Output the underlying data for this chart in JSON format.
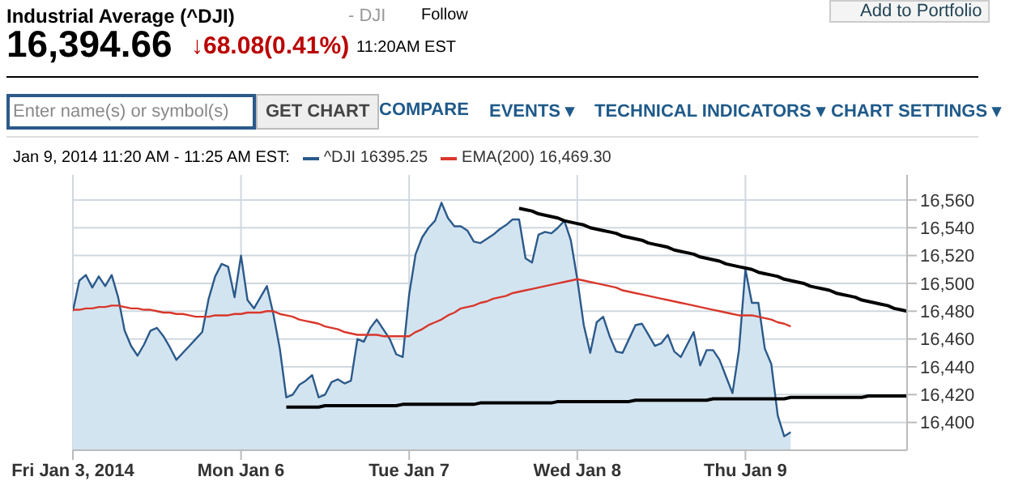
{
  "chart_data": {
    "type": "area",
    "title": "Industrial Average (^DJI)",
    "subtitle": "16,394.66",
    "annotations": [
      "- DJI",
      "Follow",
      "Add to Portfolio",
      "↓68.08(0.41%)",
      "11:20AM EST",
      "Enter name(s) or symbol(s)",
      "GET CHART",
      "COMPARE",
      "EVENTS ▾",
      "TECHNICAL INDICATORS ▾",
      "CHART SETTINGS ▾"
    ],
    "legend_title": "Jan 9, 2014 11:20 AM - 11:25 AM EST:",
    "legend": "top left",
    "grid": true,
    "categories": [
      "Fri Jan 3, 2014",
      null,
      null,
      null,
      null,
      null,
      null,
      null,
      null,
      null,
      null,
      null,
      null,
      null,
      null,
      null,
      null,
      null,
      null,
      null,
      null,
      null,
      null,
      null,
      null,
      null,
      "Mon Jan 6",
      null,
      null,
      null,
      null,
      null,
      null,
      null,
      null,
      null,
      null,
      null,
      null,
      null,
      null,
      null,
      null,
      null,
      null,
      null,
      null,
      null,
      null,
      null,
      null,
      null,
      "Tue Jan 7",
      null,
      null,
      null,
      null,
      null,
      null,
      null,
      null,
      null,
      null,
      null,
      null,
      null,
      null,
      null,
      null,
      null,
      null,
      null,
      null,
      null,
      null,
      null,
      null,
      null,
      "Wed Jan 8",
      null,
      null,
      null,
      null,
      null,
      null,
      null,
      null,
      null,
      null,
      null,
      null,
      null,
      null,
      null,
      null,
      null,
      null,
      null,
      null,
      null,
      null,
      null,
      null,
      null,
      "Thu Jan 9",
      null,
      null,
      null,
      null,
      null,
      null,
      null,
      null,
      null,
      null,
      null,
      null,
      null,
      null,
      null,
      null,
      null,
      null,
      null,
      null,
      null,
      null,
      null,
      null,
      null
    ],
    "ylim": [
      16380,
      16578
    ],
    "yticks": [
      {
        "value": 16400,
        "label": "16,400"
      },
      {
        "value": 16420,
        "label": "16,420"
      },
      {
        "value": 16440,
        "label": "16,440"
      },
      {
        "value": 16460,
        "label": "16,460"
      },
      {
        "value": 16480,
        "label": "16,480"
      },
      {
        "value": 16500,
        "label": "16,500"
      },
      {
        "value": 16520,
        "label": "16,520"
      },
      {
        "value": 16540,
        "label": "16,540"
      },
      {
        "value": 16560,
        "label": "16,560"
      }
    ],
    "series": [
      {
        "name": "^DJI 16395.25",
        "color": "#2b5a8a",
        "values": [
          16480,
          16502,
          16506,
          16497,
          16505,
          16498,
          16506,
          16490,
          16466,
          16455,
          16448,
          16456,
          16466,
          16468,
          16462,
          16454,
          16445,
          16450,
          16455,
          16460,
          16465,
          16489,
          16505,
          16514,
          16512,
          16490,
          16520,
          16488,
          16482,
          16490,
          16498,
          16478,
          16453,
          16418,
          16420,
          16427,
          16430,
          16434,
          16418,
          16420,
          16429,
          16431,
          16428,
          16430,
          16460,
          16458,
          16468,
          16474,
          16467,
          16460,
          16449,
          16447,
          16492,
          16521,
          16533,
          16540,
          16545,
          16558,
          16547,
          16541,
          16541,
          16538,
          16530,
          16529,
          16532,
          16535,
          16539,
          16542,
          16546,
          16546,
          16518,
          16515,
          16535,
          16537,
          16536,
          16540,
          16545,
          16531,
          16503,
          16470,
          16450,
          16472,
          16476,
          16462,
          16451,
          16450,
          16460,
          16470,
          16471,
          16463,
          16455,
          16457,
          16463,
          16451,
          16447,
          16456,
          16465,
          16441,
          16452,
          16452,
          16445,
          16433,
          16421,
          16452,
          16510,
          16486,
          16486,
          16453,
          16442,
          16405,
          16390,
          16393,
          null,
          null,
          null,
          null,
          null,
          null,
          null,
          null,
          null,
          null,
          null,
          null,
          null,
          null,
          null,
          null,
          null,
          null
        ]
      },
      {
        "name": "EMA(200) 16,469.30",
        "type": "line",
        "color": "#d9372b",
        "values": [
          16481,
          16481,
          16482,
          16482,
          16483,
          16483,
          16484,
          16484,
          16483,
          16482,
          16482,
          16481,
          16481,
          16480,
          16479,
          16479,
          16478,
          16478,
          16477,
          16476,
          16476,
          16476,
          16477,
          16477,
          16477,
          16478,
          16478,
          16479,
          16479,
          16479,
          16480,
          16480,
          16478,
          16477,
          16476,
          16474,
          16473,
          16472,
          16471,
          16469,
          16468,
          16467,
          16465,
          16464,
          16463,
          16463,
          16463,
          16463,
          16462,
          16462,
          16462,
          16462,
          16462,
          16465,
          16467,
          16470,
          16472,
          16474,
          16477,
          16479,
          16482,
          16483,
          16484,
          16486,
          16487,
          16489,
          16490,
          16491,
          16493,
          16494,
          16495,
          16496,
          16497,
          16498,
          16499,
          16500,
          16501,
          16502,
          16503,
          16502,
          16501,
          16500,
          16499,
          16498,
          16497,
          16495,
          16494,
          16493,
          16492,
          16491,
          16490,
          16489,
          16488,
          16487,
          16486,
          16485,
          16484,
          16483,
          16482,
          16481,
          16480,
          16479,
          16478,
          16477,
          16477,
          16477,
          16476,
          16475,
          16474,
          16472,
          16471,
          16469,
          null,
          null,
          null,
          null,
          null,
          null,
          null,
          null,
          null,
          null,
          null,
          null,
          null,
          null,
          null,
          null,
          null,
          null
        ]
      },
      {
        "type": "line",
        "color": "#000000",
        "values": [
          null,
          null,
          null,
          null,
          null,
          null,
          null,
          null,
          null,
          null,
          null,
          null,
          null,
          null,
          null,
          null,
          null,
          null,
          null,
          null,
          null,
          null,
          null,
          null,
          null,
          null,
          null,
          null,
          null,
          null,
          null,
          null,
          null,
          null,
          null,
          null,
          null,
          null,
          null,
          null,
          null,
          null,
          null,
          null,
          null,
          null,
          null,
          null,
          null,
          null,
          null,
          null,
          null,
          null,
          null,
          null,
          null,
          null,
          null,
          null,
          null,
          null,
          null,
          null,
          null,
          null,
          null,
          null,
          null,
          16554,
          16553,
          16552,
          16550,
          16549,
          16548,
          16547,
          16545,
          16544,
          16543,
          16542,
          16540,
          16539,
          16538,
          16537,
          16536,
          16534,
          16533,
          16532,
          16531,
          16529,
          16528,
          16527,
          16526,
          16524,
          16523,
          16522,
          16521,
          16519,
          16518,
          16517,
          16516,
          16514,
          16513,
          16512,
          16511,
          16510,
          16508,
          16507,
          16506,
          16505,
          16503,
          16502,
          16501,
          16500,
          16498,
          16497,
          16496,
          16495,
          16493,
          16492,
          16491,
          16490,
          16488,
          16487,
          16486,
          16485,
          16484,
          16482,
          16481,
          16480
        ]
      },
      {
        "type": "line",
        "color": "#000000",
        "values": [
          null,
          null,
          null,
          null,
          null,
          null,
          null,
          null,
          null,
          null,
          null,
          null,
          null,
          null,
          null,
          null,
          null,
          null,
          null,
          null,
          null,
          null,
          null,
          null,
          null,
          null,
          null,
          null,
          null,
          null,
          null,
          null,
          null,
          16411,
          16411,
          16411,
          16411,
          16411,
          16411,
          16412,
          16412,
          16412,
          16412,
          16412,
          16412,
          16412,
          16412,
          16412,
          16412,
          16412,
          16412,
          16413,
          16413,
          16413,
          16413,
          16413,
          16413,
          16413,
          16413,
          16413,
          16413,
          16413,
          16413,
          16414,
          16414,
          16414,
          16414,
          16414,
          16414,
          16414,
          16414,
          16414,
          16414,
          16414,
          16414,
          16415,
          16415,
          16415,
          16415,
          16415,
          16415,
          16415,
          16415,
          16415,
          16415,
          16415,
          16415,
          16416,
          16416,
          16416,
          16416,
          16416,
          16416,
          16416,
          16416,
          16416,
          16416,
          16416,
          16416,
          16417,
          16417,
          16417,
          16417,
          16417,
          16417,
          16417,
          16417,
          16417,
          16417,
          16417,
          16417,
          16418,
          16418,
          16418,
          16418,
          16418,
          16418,
          16418,
          16418,
          16418,
          16418,
          16418,
          16418,
          16419,
          16419,
          16419,
          16419,
          16419,
          16419,
          16419
        ]
      }
    ]
  }
}
